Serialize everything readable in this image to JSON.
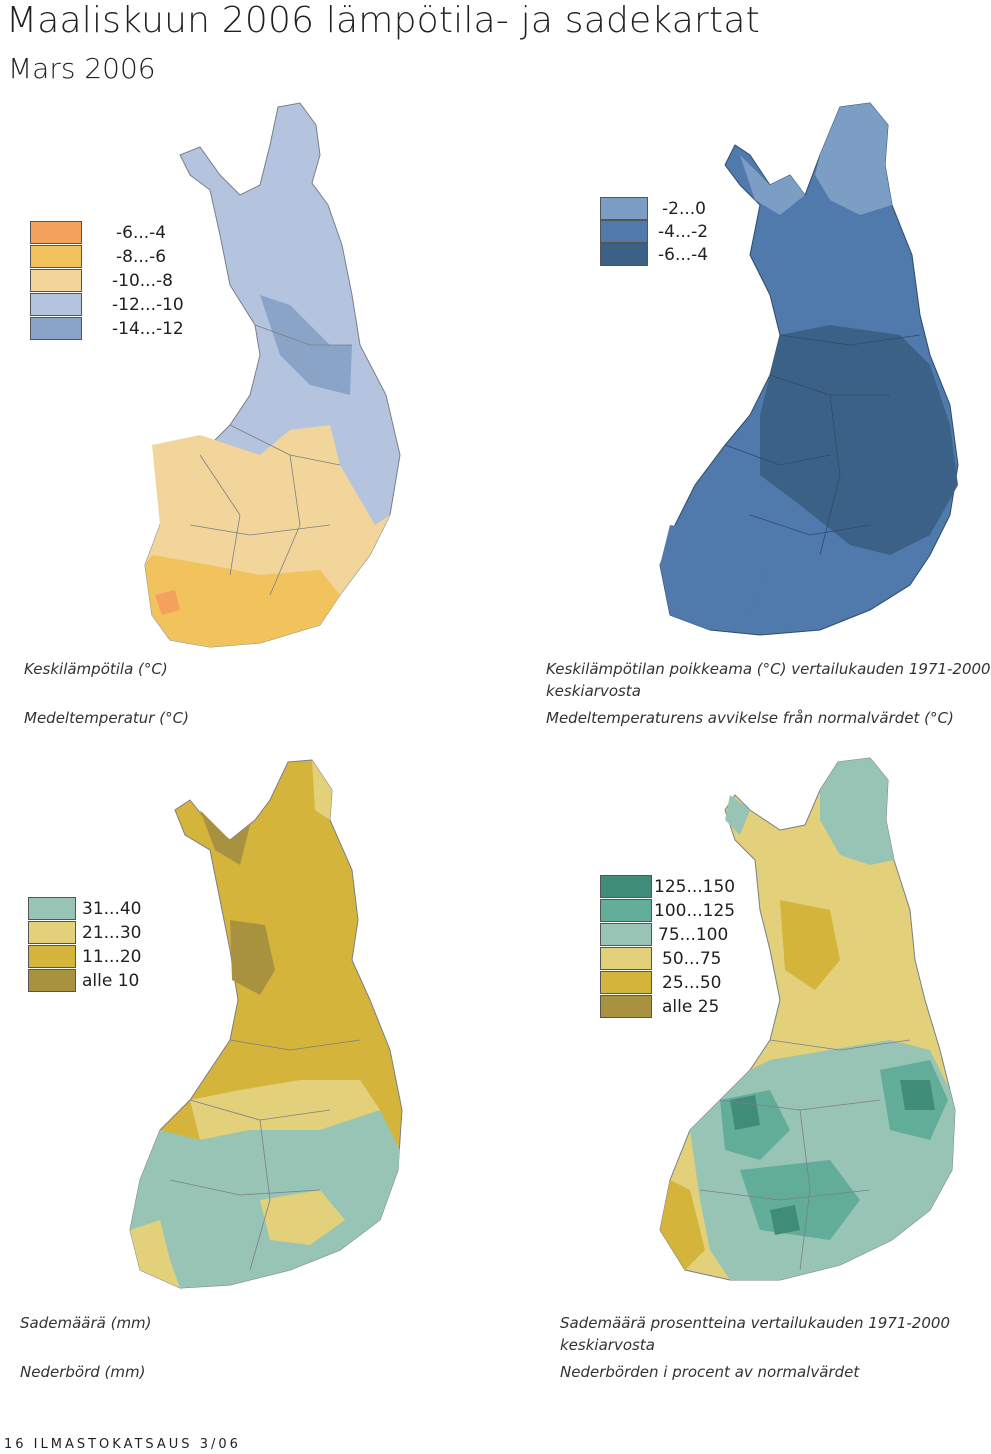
{
  "header": {
    "title": "Maaliskuun 2006 lämpötila- ja sadekartat",
    "subtitle": "Mars 2006"
  },
  "maps": [
    {
      "id": "mean-temperature",
      "caption_fi": "Keskilämpötila (°C)",
      "caption_sv": "Medeltemperatur (°C)",
      "legend": [
        {
          "label": "-6...-4",
          "color": "#f4a15d"
        },
        {
          "label": "-8...-6",
          "color": "#f2c35c"
        },
        {
          "label": "-10...-8",
          "color": "#f2d59a"
        },
        {
          "label": "-12...-10",
          "color": "#b5c4de"
        },
        {
          "label": "-14...-12",
          "color": "#8aa4c7"
        }
      ]
    },
    {
      "id": "temperature-anomaly",
      "caption_fi": "Keskilämpötilan poikkeama (°C) vertailukauden 1971-2000",
      "caption_fi_2": "keskiarvosta",
      "caption_sv": "Medeltemperaturens avvikelse från normalvärdet (°C)",
      "legend": [
        {
          "label": "-2...0",
          "color": "#7d9ec4"
        },
        {
          "label": "-4...-2",
          "color": "#4f7aab"
        },
        {
          "label": "-6...-4",
          "color": "#3b6186"
        }
      ]
    },
    {
      "id": "precipitation",
      "caption_fi": "Sademäärä (mm)",
      "caption_sv": "Nederbörd (mm)",
      "legend": [
        {
          "label": "31...40",
          "color": "#98c4b5"
        },
        {
          "label": "21...30",
          "color": "#e2d07a"
        },
        {
          "label": "11...20",
          "color": "#d5b43c"
        },
        {
          "label": "alle 10",
          "color": "#a89240"
        }
      ]
    },
    {
      "id": "precipitation-percent",
      "caption_fi": "Sademäärä prosentteina vertailukauden 1971-2000",
      "caption_fi_2": "keskiarvosta",
      "caption_sv": "Nederbörden i procent av normalvärdet",
      "legend": [
        {
          "label": "125...150",
          "color": "#3f8c78"
        },
        {
          "label": "100...125",
          "color": "#62ad98"
        },
        {
          "label": "75...100",
          "color": "#98c4b5"
        },
        {
          "label": "50...75",
          "color": "#e2d07a"
        },
        {
          "label": "25...50",
          "color": "#d5b43c"
        },
        {
          "label": "alle 25",
          "color": "#a89240"
        }
      ]
    }
  ],
  "footer": {
    "text": "16   ILMASTOKATSAUS 3/06"
  }
}
